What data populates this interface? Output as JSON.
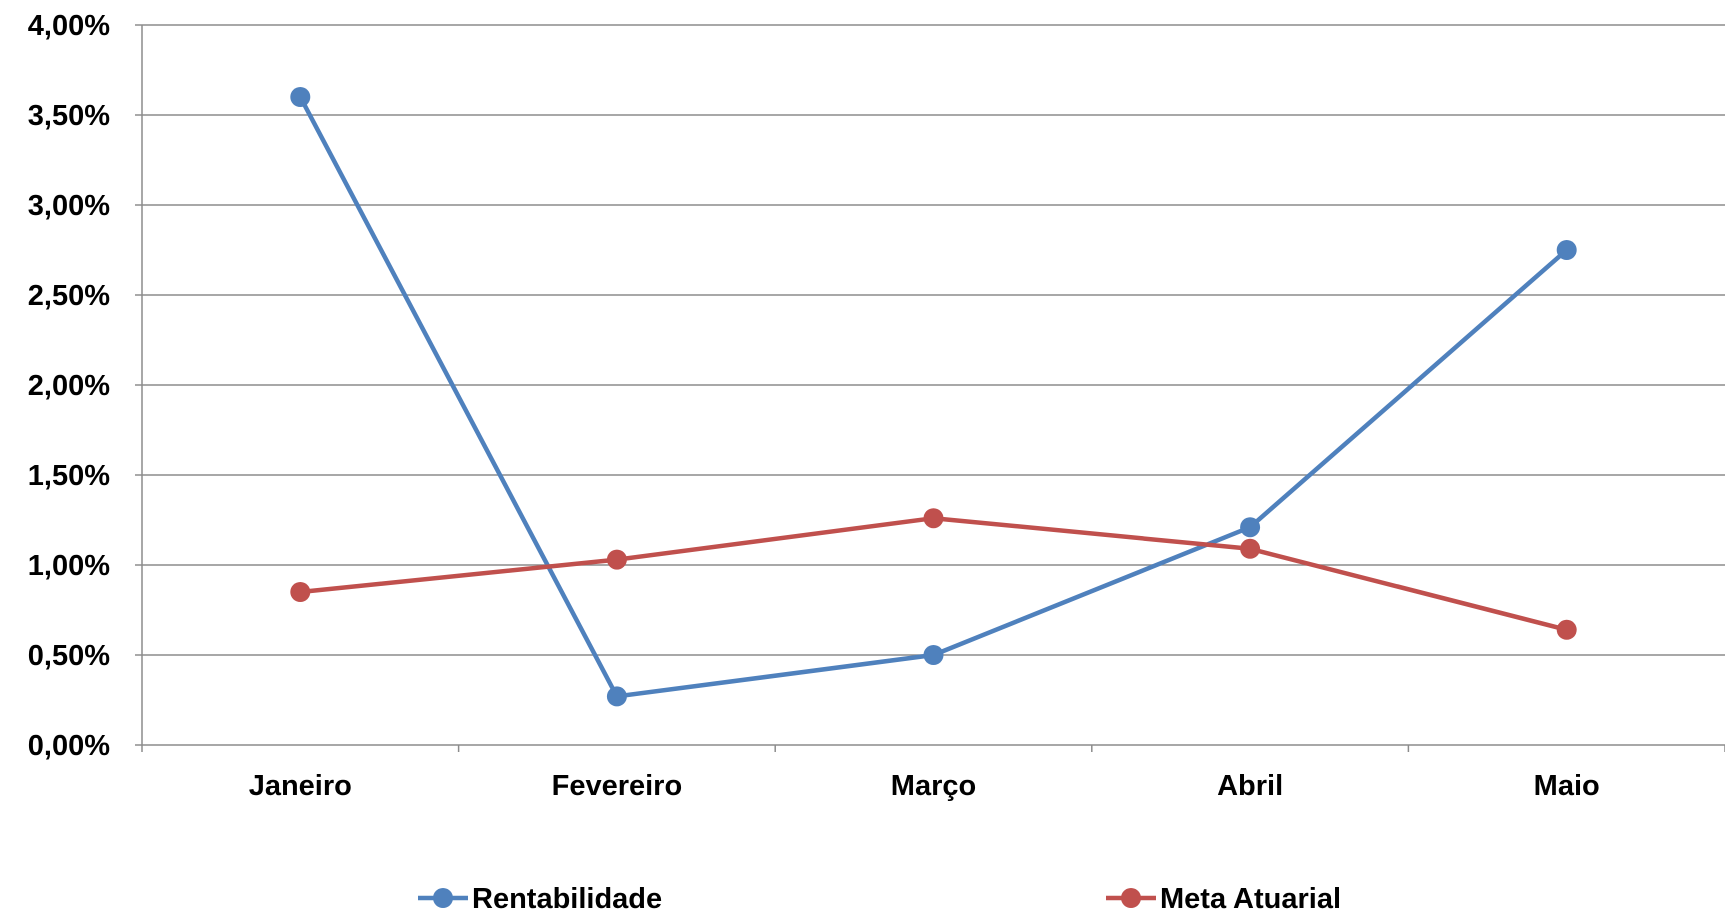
{
  "chart_data": {
    "type": "line",
    "categories": [
      "Janeiro",
      "Fevereiro",
      "Março",
      "Abril",
      "Maio"
    ],
    "series": [
      {
        "name": "Rentabilidade",
        "color": "#4F81BD",
        "values": [
          3.6,
          0.27,
          0.5,
          1.21,
          2.75
        ]
      },
      {
        "name": "Meta Atuarial",
        "color": "#C0504D",
        "values": [
          0.85,
          1.03,
          1.26,
          1.09,
          0.64
        ]
      }
    ],
    "ylim": [
      0,
      4
    ],
    "yticks": [
      {
        "value": 0.0,
        "label": "0,00%"
      },
      {
        "value": 0.5,
        "label": "0,50%"
      },
      {
        "value": 1.0,
        "label": "1,00%"
      },
      {
        "value": 1.5,
        "label": "1,50%"
      },
      {
        "value": 2.0,
        "label": "2,00%"
      },
      {
        "value": 2.5,
        "label": "2,50%"
      },
      {
        "value": 3.0,
        "label": "3,00%"
      },
      {
        "value": 3.5,
        "label": "3,50%"
      },
      {
        "value": 4.0,
        "label": "4,00%"
      }
    ],
    "grid": true,
    "legend_position": "bottom",
    "title": "",
    "xlabel": "",
    "ylabel": ""
  }
}
